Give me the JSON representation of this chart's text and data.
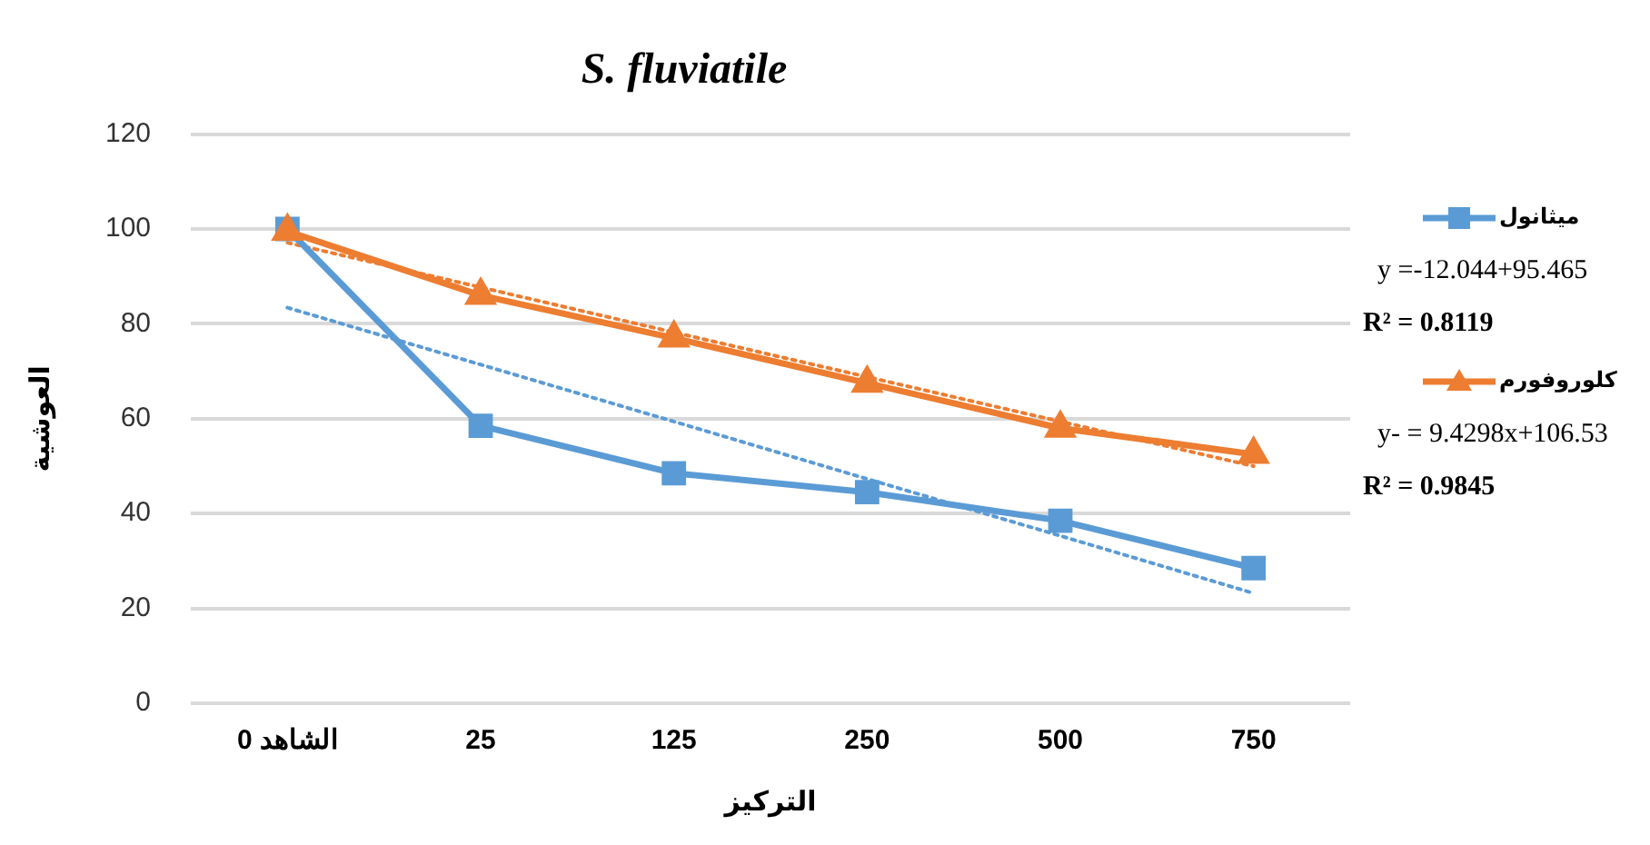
{
  "chart_data": {
    "type": "line",
    "title": "S. fluviatile",
    "xlabel": "التركيز",
    "ylabel": "العوشية",
    "categories": [
      "الشاهد 0",
      "25",
      "125",
      "250",
      "500",
      "750"
    ],
    "ylim": [
      0,
      120
    ],
    "yticks": [
      0,
      20,
      40,
      60,
      80,
      100,
      120
    ],
    "grid": "y",
    "legend": "right",
    "series": [
      {
        "name": "ميثانول",
        "color": "#5b9bd5",
        "marker": "square",
        "line_style": "solid",
        "values": [
          100,
          58.5,
          48.5,
          44.5,
          38.5,
          28.5
        ]
      },
      {
        "name": "كلوروفورم",
        "color": "#ed7d31",
        "marker": "triangle",
        "line_style": "solid",
        "values": [
          99.5,
          86,
          77,
          67.5,
          58,
          52.5
        ]
      },
      {
        "color": "#5b9bd5",
        "marker": "none",
        "line_style": "dotted",
        "values": [
          83.4,
          71.4,
          59.4,
          47.3,
          35.3,
          23.2
        ]
      },
      {
        "color": "#ed7d31",
        "marker": "none",
        "line_style": "dotted",
        "values": [
          97.1,
          87.7,
          78.2,
          68.8,
          59.4,
          50
        ]
      }
    ],
    "annotations": [
      "y =-12.044+95.465",
      "R² = 0.8119",
      "y- = 9.4298x+106.53",
      "R² = 0.9845"
    ]
  }
}
